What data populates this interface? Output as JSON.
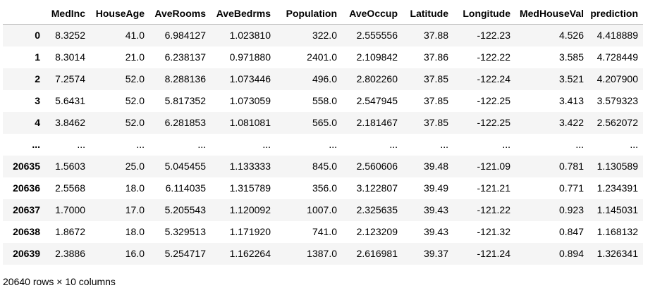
{
  "table": {
    "columns": [
      "",
      "MedInc",
      "HouseAge",
      "AveRooms",
      "AveBedrms",
      "Population",
      "AveOccup",
      "Latitude",
      "Longitude",
      "MedHouseVal",
      "prediction"
    ],
    "rows": [
      [
        "0",
        "8.3252",
        "41.0",
        "6.984127",
        "1.023810",
        "322.0",
        "2.555556",
        "37.88",
        "-122.23",
        "4.526",
        "4.418889"
      ],
      [
        "1",
        "8.3014",
        "21.0",
        "6.238137",
        "0.971880",
        "2401.0",
        "2.109842",
        "37.86",
        "-122.22",
        "3.585",
        "4.728449"
      ],
      [
        "2",
        "7.2574",
        "52.0",
        "8.288136",
        "1.073446",
        "496.0",
        "2.802260",
        "37.85",
        "-122.24",
        "3.521",
        "4.207900"
      ],
      [
        "3",
        "5.6431",
        "52.0",
        "5.817352",
        "1.073059",
        "558.0",
        "2.547945",
        "37.85",
        "-122.25",
        "3.413",
        "3.579323"
      ],
      [
        "4",
        "3.8462",
        "52.0",
        "6.281853",
        "1.081081",
        "565.0",
        "2.181467",
        "37.85",
        "-122.25",
        "3.422",
        "2.562072"
      ],
      [
        "...",
        "...",
        "...",
        "...",
        "...",
        "...",
        "...",
        "...",
        "...",
        "...",
        "..."
      ],
      [
        "20635",
        "1.5603",
        "25.0",
        "5.045455",
        "1.133333",
        "845.0",
        "2.560606",
        "39.48",
        "-121.09",
        "0.781",
        "1.130589"
      ],
      [
        "20636",
        "2.5568",
        "18.0",
        "6.114035",
        "1.315789",
        "356.0",
        "3.122807",
        "39.49",
        "-121.21",
        "0.771",
        "1.234391"
      ],
      [
        "20637",
        "1.7000",
        "17.0",
        "5.205543",
        "1.120092",
        "1007.0",
        "2.325635",
        "39.43",
        "-121.22",
        "0.923",
        "1.145031"
      ],
      [
        "20638",
        "1.8672",
        "18.0",
        "5.329513",
        "1.171920",
        "741.0",
        "2.123209",
        "39.43",
        "-121.32",
        "0.847",
        "1.168132"
      ],
      [
        "20639",
        "2.3886",
        "16.0",
        "5.254717",
        "1.162264",
        "1387.0",
        "2.616981",
        "39.37",
        "-121.24",
        "0.894",
        "1.326341"
      ]
    ]
  },
  "summary": "20640 rows × 10 columns"
}
